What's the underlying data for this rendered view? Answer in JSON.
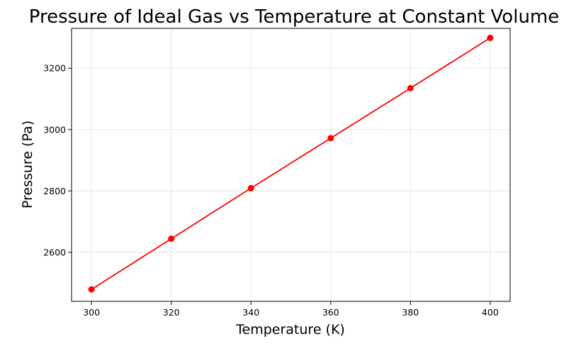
{
  "chart_data": {
    "type": "line",
    "title": "Pressure of Ideal Gas vs Temperature at Constant Volume",
    "xlabel": "Temperature (K)",
    "ylabel": "Pressure (Pa)",
    "xlim": [
      295,
      405
    ],
    "ylim": [
      2440,
      3330
    ],
    "x_ticks": [
      300,
      320,
      340,
      360,
      380,
      400
    ],
    "y_ticks": [
      2600,
      2800,
      3000,
      3200
    ],
    "grid": true,
    "series": [
      {
        "x": [
          300,
          320,
          340,
          360,
          380,
          400
        ],
        "values": [
          2479,
          2644,
          2809,
          2972,
          3135,
          3299
        ],
        "color": "#ff0000",
        "marker": "circle"
      }
    ]
  }
}
